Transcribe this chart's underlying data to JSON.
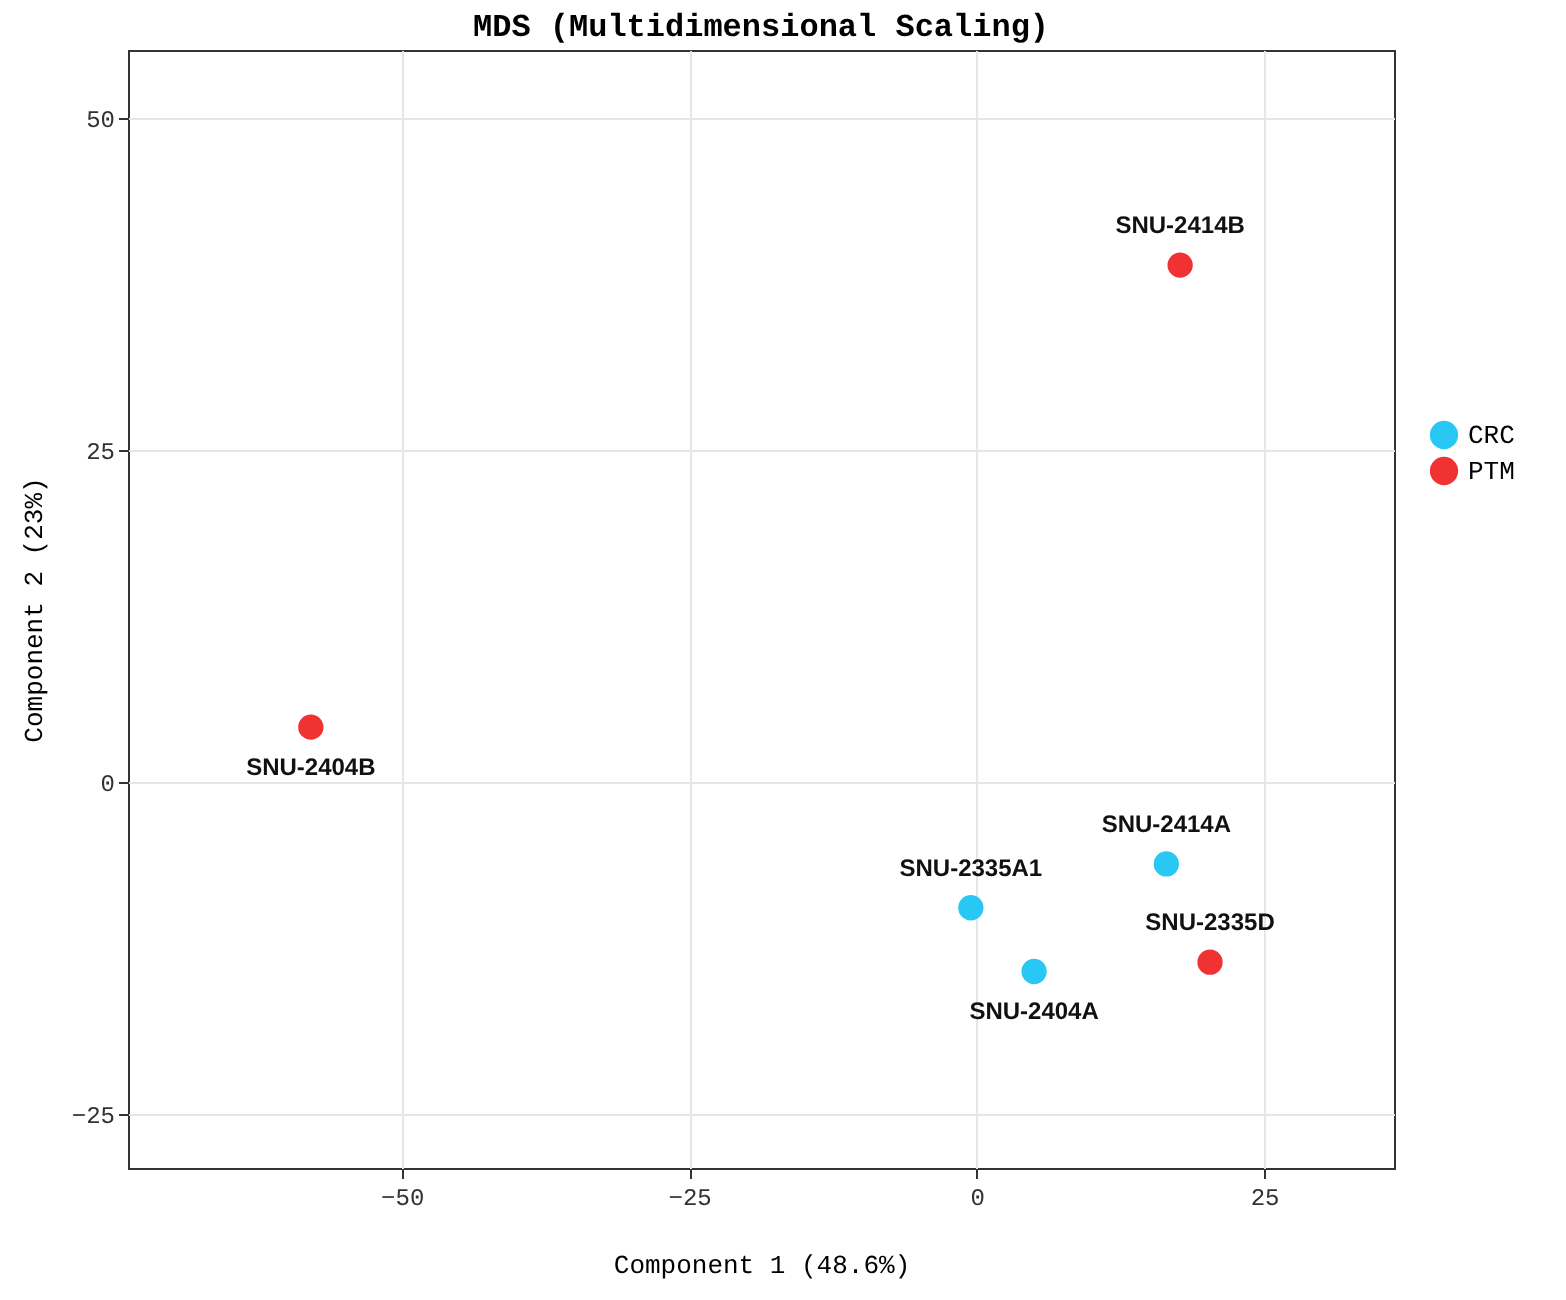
{
  "chart_data": {
    "type": "scatter",
    "title": "MDS (Multidimensional Scaling)",
    "xlabel": "Component 1 (48.6%)",
    "ylabel": "Component 2 (23%)",
    "xlim": [
      -73.8,
      36.3
    ],
    "ylim": [
      -29.1,
      55.1
    ],
    "xticks": [
      -50,
      -25,
      0,
      25
    ],
    "yticks": [
      -25,
      0,
      25,
      50
    ],
    "grid": true,
    "legend": "right",
    "marker": "circle",
    "series": [
      {
        "name": "CRC",
        "color": "#29c8f4",
        "x": [
          -0.5,
          5.0,
          16.5
        ],
        "values": [
          -9.5,
          -14.3,
          -6.2
        ]
      },
      {
        "name": "PTM",
        "color": "#f03232",
        "x": [
          17.7,
          -57.9,
          20.3
        ],
        "values": [
          38.9,
          4.1,
          -13.6
        ]
      }
    ],
    "annotations": [
      {
        "text": "SNU-2414B",
        "x": 17.7,
        "y": 38.9
      },
      {
        "text": "SNU-2404B",
        "x": -57.9,
        "y": 4.1
      },
      {
        "text": "SNU-2335A1",
        "x": -0.5,
        "y": -9.5
      },
      {
        "text": "SNU-2404A",
        "x": 5.0,
        "y": -14.3
      },
      {
        "text": "SNU-2414A",
        "x": 16.5,
        "y": -6.2
      },
      {
        "text": "SNU-2335D",
        "x": 20.3,
        "y": -13.6
      }
    ]
  }
}
